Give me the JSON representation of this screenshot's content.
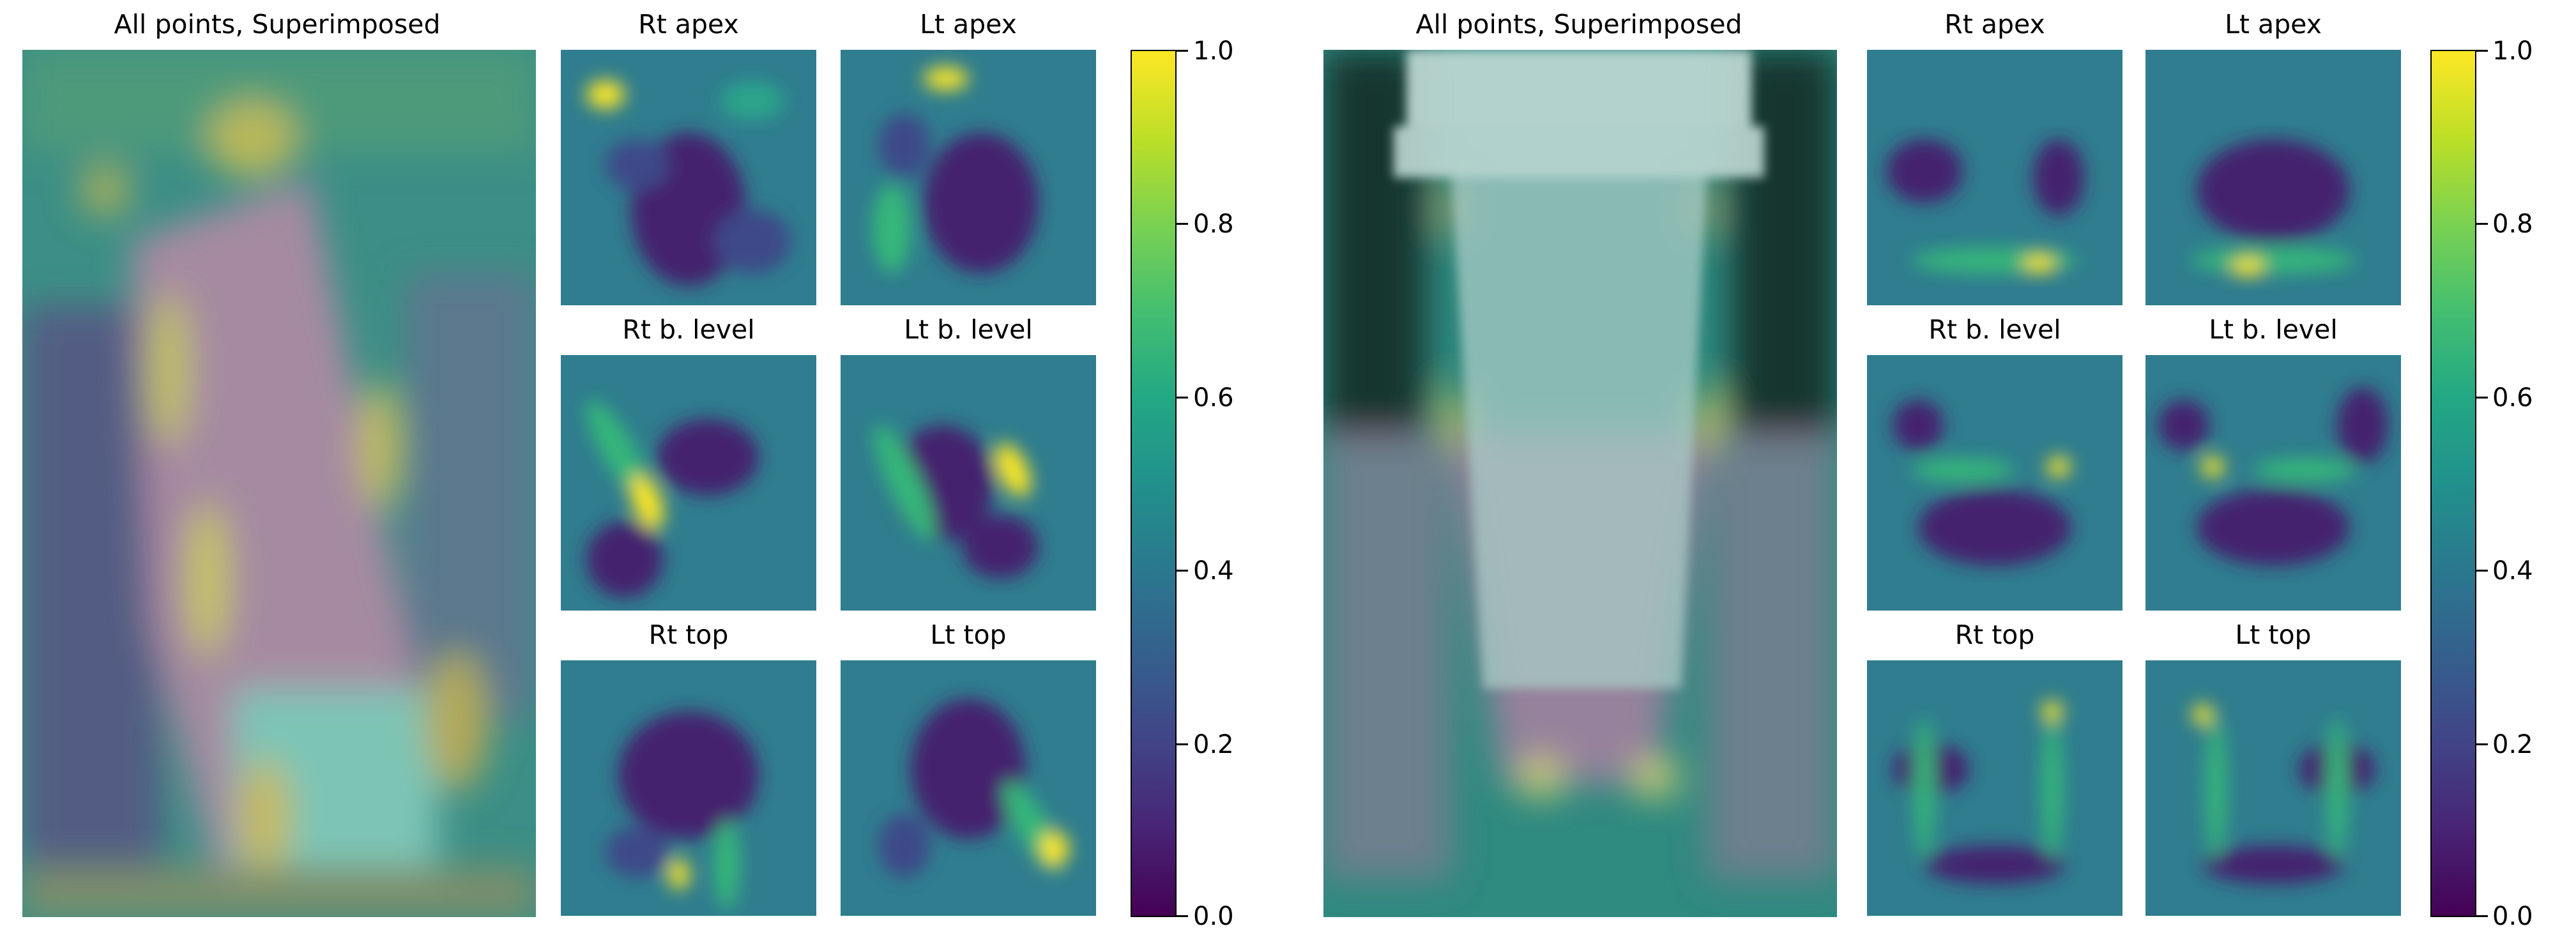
{
  "figure_left": {
    "main_title": "All points, Superimposed",
    "thumb_titles": [
      "Rt apex",
      "Lt apex",
      "Rt b. level",
      "Lt b. level",
      "Rt top",
      "Lt top"
    ],
    "colorbar": {
      "ticks": [
        "1.0",
        "0.8",
        "0.6",
        "0.4",
        "0.2",
        "0.0"
      ],
      "min": 0.0,
      "max": 1.0,
      "colormap": "viridis"
    }
  },
  "figure_right": {
    "main_title": "All points, Superimposed",
    "thumb_titles": [
      "Rt apex",
      "Lt apex",
      "Rt b. level",
      "Lt b. level",
      "Rt top",
      "Lt top"
    ],
    "colorbar": {
      "ticks": [
        "1.0",
        "0.8",
        "0.6",
        "0.4",
        "0.2",
        "0.0"
      ],
      "min": 0.0,
      "max": 1.0,
      "colormap": "viridis"
    }
  },
  "colors": {
    "viridis_low": "#440154",
    "viridis_mid": "#21918c",
    "viridis_high": "#fde725"
  }
}
